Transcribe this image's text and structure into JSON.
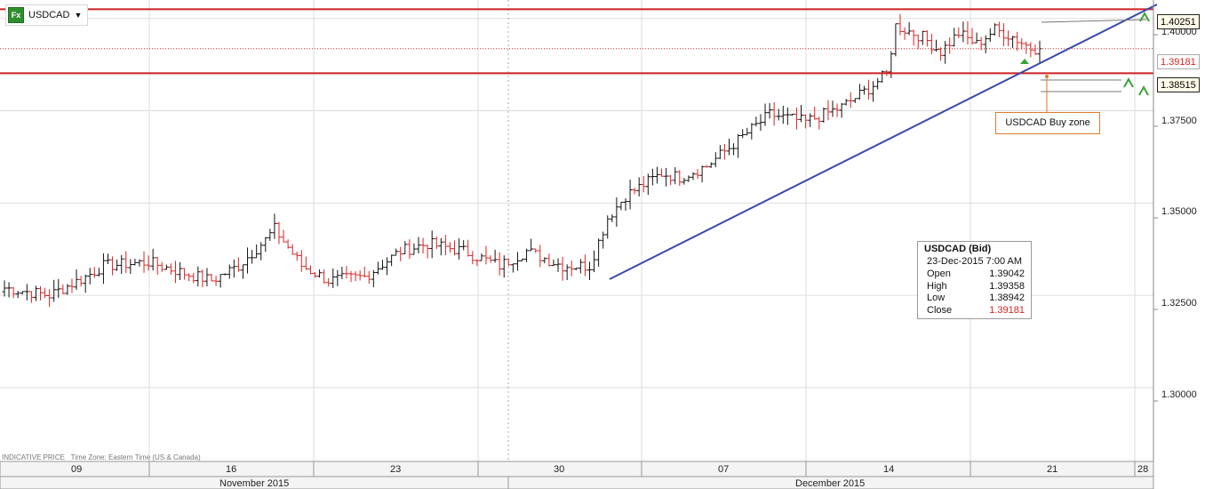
{
  "symbol": {
    "icon": "fx-icon",
    "label": "Fx",
    "name": "USDCAD",
    "dropdown": "dropdown-caret-icon"
  },
  "colors": {
    "up_bar": "#111111",
    "down_bar": "#dd2222",
    "level_line": "#cc2222",
    "trend_line": "#3a4aa8",
    "zone_box": "#e07a2a",
    "grid": "#dddddd",
    "marker_green": "#37a437"
  },
  "price_tags": {
    "upper": "1.40251",
    "current": "1.39181",
    "lower": "1.38515"
  },
  "y_axis": {
    "ticks": [
      "1.40000",
      "1.37500",
      "1.35000",
      "1.32500",
      "1.30000"
    ]
  },
  "x_axis": {
    "day_labels": [
      "09",
      "16",
      "23",
      "30",
      "07",
      "14",
      "21",
      "28"
    ],
    "months": [
      "November 2015",
      "December 2015"
    ]
  },
  "annotation": {
    "label": "USDCAD Buy zone"
  },
  "tooltip": {
    "title": "USDCAD (Bid)",
    "date": "23-Dec-2015 7:00 AM",
    "rows": [
      {
        "k": "Open",
        "v": "1.39042"
      },
      {
        "k": "High",
        "v": "1.39358"
      },
      {
        "k": "Low",
        "v": "1.38942"
      },
      {
        "k": "Close",
        "v": "1.39181"
      }
    ]
  },
  "footer": {
    "indicative": "INDICATIVE PRICE",
    "timezone": "Time Zone: Eastern Time (US & Canada)"
  },
  "chart_data": {
    "type": "ohlc",
    "instrument": "USDCAD (Bid)",
    "ylim": [
      1.28,
      1.405
    ],
    "grid": true,
    "levels": [
      1.40251,
      1.38515
    ],
    "current_price": 1.39181,
    "anchors": [
      [
        0,
        1.327
      ],
      [
        10,
        1.325
      ],
      [
        18,
        1.33
      ],
      [
        22,
        1.333
      ],
      [
        32,
        1.334
      ],
      [
        40,
        1.331
      ],
      [
        46,
        1.329
      ],
      [
        52,
        1.333
      ],
      [
        58,
        1.34
      ],
      [
        60,
        1.343
      ],
      [
        66,
        1.333
      ],
      [
        72,
        1.329
      ],
      [
        80,
        1.33
      ],
      [
        88,
        1.337
      ],
      [
        94,
        1.339
      ],
      [
        102,
        1.337
      ],
      [
        110,
        1.333
      ],
      [
        116,
        1.337
      ],
      [
        124,
        1.333
      ],
      [
        130,
        1.333
      ],
      [
        134,
        1.346
      ],
      [
        138,
        1.352
      ],
      [
        146,
        1.358
      ],
      [
        150,
        1.357
      ],
      [
        156,
        1.36
      ],
      [
        162,
        1.366
      ],
      [
        170,
        1.374
      ],
      [
        178,
        1.372
      ],
      [
        186,
        1.376
      ],
      [
        192,
        1.381
      ],
      [
        196,
        1.385
      ],
      [
        198,
        1.398
      ],
      [
        204,
        1.395
      ],
      [
        208,
        1.391
      ],
      [
        212,
        1.396
      ],
      [
        216,
        1.393
      ],
      [
        220,
        1.397
      ],
      [
        224,
        1.395
      ],
      [
        228,
        1.392
      ],
      [
        230,
        1.3918
      ]
    ]
  }
}
